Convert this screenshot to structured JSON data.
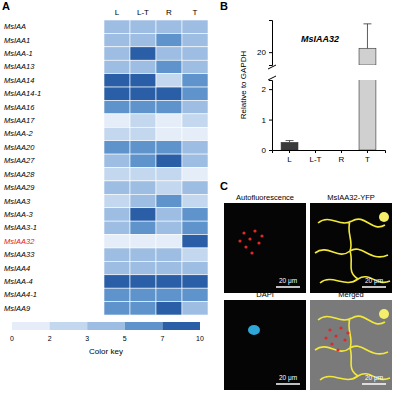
{
  "chart_data": [
    {
      "type": "heatmap",
      "panel_label": "A",
      "columns": [
        "L",
        "L-T",
        "R",
        "T"
      ],
      "rows": [
        "MsIAA",
        "MsIAA1",
        "MsIAA-1",
        "MsIAA13",
        "MsIAA14",
        "MsIAA14-1",
        "MsIAA16",
        "MsIAA17",
        "MsIAA-2",
        "MsIAA20",
        "MsIAA27",
        "MsIAA28",
        "MsIAA29",
        "MsIAA3",
        "MsIAA-3",
        "MsIAA3-1",
        "MsIAA32",
        "MsIAA33",
        "MsIAA4",
        "MsIAA-4",
        "MsIAA4-1",
        "MsIAA9"
      ],
      "label_colors": [
        "#000000",
        "#000000",
        "#000000",
        "#000000",
        "#000000",
        "#000000",
        "#000000",
        "#000000",
        "#000000",
        "#000000",
        "#000000",
        "#000000",
        "#000000",
        "#000000",
        "#000000",
        "#000000",
        "#e02020",
        "#000000",
        "#000000",
        "#000000",
        "#000000",
        "#000000"
      ],
      "values": [
        [
          4,
          4,
          4,
          3
        ],
        [
          3,
          4,
          5,
          3
        ],
        [
          3,
          8,
          3,
          3
        ],
        [
          4,
          3,
          6,
          4
        ],
        [
          7,
          7,
          2,
          5
        ],
        [
          7,
          8,
          8,
          5
        ],
        [
          6,
          6,
          6,
          4
        ],
        [
          1,
          2,
          1,
          2
        ],
        [
          2,
          2,
          1,
          1
        ],
        [
          5,
          5,
          5,
          4
        ],
        [
          4,
          5,
          8,
          3
        ],
        [
          2,
          2,
          2,
          1
        ],
        [
          3,
          3,
          2,
          3
        ],
        [
          2,
          3,
          5,
          2
        ],
        [
          3,
          7,
          3,
          5
        ],
        [
          3,
          6,
          3,
          5
        ],
        [
          1,
          1,
          1,
          7
        ],
        [
          3,
          3,
          3,
          2
        ],
        [
          3,
          3,
          3,
          3
        ],
        [
          8,
          8,
          8,
          8
        ],
        [
          5,
          5,
          5,
          5
        ],
        [
          5,
          5,
          7,
          4
        ]
      ],
      "colorbar": {
        "title": "Color key",
        "ticks": [
          0,
          2,
          3,
          5,
          7,
          10
        ],
        "colors": [
          "#e4edf8",
          "#c3d7ee",
          "#9dbde2",
          "#5f93cc",
          "#2a5ea6"
        ]
      }
    },
    {
      "type": "bar",
      "panel_label": "B",
      "title": "MsIAA32",
      "y_label": "Relative to GAPDH",
      "categories": [
        "L",
        "L-T",
        "R",
        "T"
      ],
      "values": [
        0.25,
        0,
        0,
        20.3
      ],
      "errors": [
        0.06,
        0,
        0,
        1.9
      ],
      "colors": [
        "#3a3a3a",
        "#3a3a3a",
        "#3a3a3a",
        "#d0d0d0"
      ],
      "ylim": [
        0,
        22.5
      ],
      "yticks": [
        0,
        1,
        2,
        20
      ],
      "y_break": [
        2.3,
        19
      ]
    }
  ],
  "panel_c": {
    "panel_label": "C",
    "images": [
      {
        "label": "Autofluorescence",
        "scale_bar": "20 μm"
      },
      {
        "label": "MsIAA32-YFP",
        "scale_bar": "20 μm"
      },
      {
        "label": "DAPI",
        "scale_bar": "20 μm"
      },
      {
        "label": "Merged",
        "scale_bar": "20 μm"
      }
    ]
  }
}
